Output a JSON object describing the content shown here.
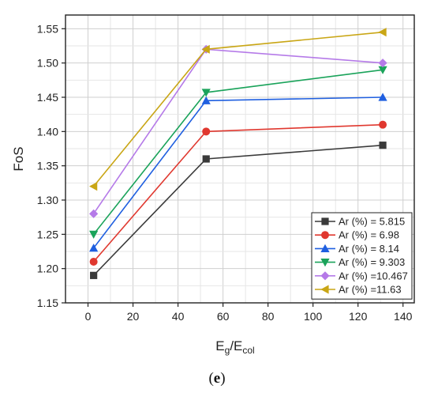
{
  "chart_data": {
    "type": "line",
    "xlabel": {
      "main": "E",
      "sub1": "g",
      "slash": "/E",
      "sub2": "col"
    },
    "ylabel": "FoS",
    "xlim": [
      -10,
      145
    ],
    "ylim": [
      1.15,
      1.57
    ],
    "xticks": [
      0,
      20,
      40,
      60,
      80,
      100,
      120,
      140
    ],
    "yticks": [
      1.15,
      1.2,
      1.25,
      1.3,
      1.35,
      1.4,
      1.45,
      1.5,
      1.55
    ],
    "ytick_labels": [
      "1.15",
      "1.20",
      "1.25",
      "1.30",
      "1.35",
      "1.40",
      "1.45",
      "1.50",
      "1.55"
    ],
    "grid": true,
    "legend_position": "bottom-right",
    "x": [
      2.5,
      52.5,
      131
    ],
    "series": [
      {
        "name": "Ar (%) = 5.815",
        "marker": "square",
        "color": "#3a3a3a",
        "values": [
          1.19,
          1.36,
          1.38
        ]
      },
      {
        "name": "Ar (%) = 6.98",
        "marker": "circle",
        "color": "#e0382f",
        "values": [
          1.21,
          1.4,
          1.41
        ]
      },
      {
        "name": "Ar (%) = 8.14",
        "marker": "triangle-up",
        "color": "#1f5fe0",
        "values": [
          1.23,
          1.445,
          1.45
        ]
      },
      {
        "name": "Ar (%) = 9.303",
        "marker": "triangle-down",
        "color": "#1aa35a",
        "values": [
          1.25,
          1.457,
          1.49
        ]
      },
      {
        "name": "Ar (%) =10.467",
        "marker": "diamond",
        "color": "#b57ae8",
        "values": [
          1.28,
          1.52,
          1.5
        ]
      },
      {
        "name": "Ar (%) =11.63",
        "marker": "triangle-left",
        "color": "#c9a615",
        "values": [
          1.32,
          1.52,
          1.545
        ]
      }
    ]
  },
  "panel_label": {
    "open": "(",
    "letter": "e",
    "close": ")"
  }
}
